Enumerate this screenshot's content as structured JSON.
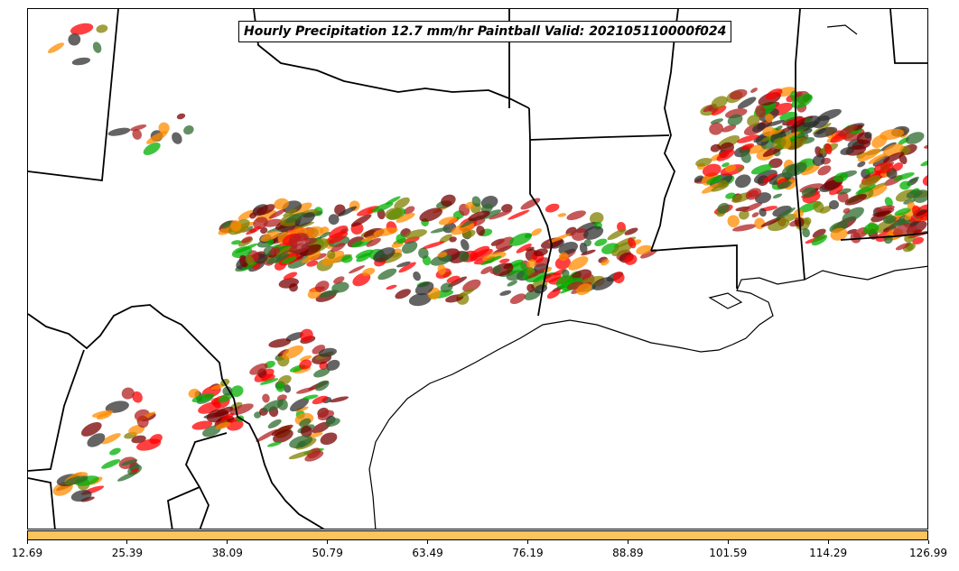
{
  "title": "Hourly Precipitation 12.7 mm/hr Paintball Valid: 202105110000f024",
  "colorbar": {
    "color": "#ffc35c",
    "tick_labels": [
      "12.69",
      "25.39",
      "38.09",
      "50.79",
      "63.49",
      "76.19",
      "88.89",
      "101.59",
      "114.29",
      "126.99"
    ]
  },
  "paintball_colors": [
    "#7a0000",
    "#ff0000",
    "#ff8c00",
    "#808000",
    "#00b000",
    "#2e6b2e",
    "#303030",
    "#b22222"
  ],
  "basemap": {
    "features": [
      "state boundaries",
      "coastline",
      "international border",
      "Gulf of Mexico"
    ]
  }
}
